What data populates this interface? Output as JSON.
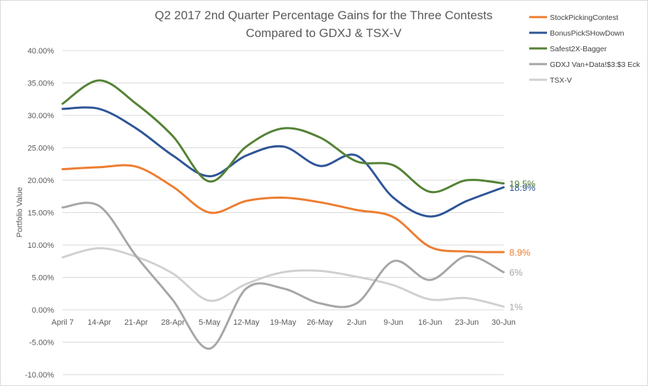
{
  "chart_data": {
    "type": "line",
    "title": "Q2 2017 2nd Quarter Percentage Gains for the Three Contests",
    "subtitle": "Compared to GDXJ & TSX-V",
    "xlabel": "",
    "ylabel": "Portfolio Value",
    "categories": [
      "April 7",
      "14-Apr",
      "21-Apr",
      "28-Apr",
      "5-May",
      "12-May",
      "19-May",
      "26-May",
      "2-Jun",
      "9-Jun",
      "16-Jun",
      "23-Jun",
      "30-Jun"
    ],
    "ylim": [
      -10,
      40
    ],
    "yticks": [
      "-10.00%",
      "-5.00%",
      "0.00%",
      "5.00%",
      "10.00%",
      "15.00%",
      "20.00%",
      "25.00%",
      "30.00%",
      "35.00%",
      "40.00%"
    ],
    "grid": true,
    "legend_position": "right",
    "series": [
      {
        "name": "StockPickingContest",
        "color": "#ED7D31",
        "values": [
          21.7,
          22.0,
          22.1,
          19.0,
          15.0,
          16.8,
          17.3,
          16.6,
          15.4,
          14.3,
          9.7,
          9.0,
          8.9
        ],
        "end_label": "8.9%",
        "label_color": "#ED7D31"
      },
      {
        "name": "BonusPickSHowDown",
        "color": "#2F5597",
        "values": [
          31.0,
          31.0,
          28.0,
          23.8,
          20.6,
          23.8,
          25.2,
          22.2,
          23.8,
          17.3,
          14.4,
          16.8,
          18.9
        ],
        "end_label": "18.9%",
        "label_color": "#2F5597"
      },
      {
        "name": "Safest2X-Bagger",
        "color": "#548235",
        "values": [
          31.8,
          35.4,
          31.8,
          26.8,
          19.8,
          25.2,
          28.0,
          26.6,
          22.9,
          22.3,
          18.2,
          20.0,
          19.5
        ],
        "end_label": "19.5%",
        "label_color": "#548235"
      },
      {
        "name": "GDXJ Van+Data!$3:$3 Eck",
        "color": "#A6A6A6",
        "values": [
          15.8,
          16.0,
          8.3,
          1.5,
          -6.0,
          3.3,
          3.3,
          1.0,
          1.0,
          7.5,
          4.6,
          8.3,
          5.8
        ],
        "end_label": "6%",
        "label_color": "#A6A6A6"
      },
      {
        "name": "TSX-V",
        "color": "#D0D0D0",
        "values": [
          8.1,
          9.5,
          8.2,
          5.6,
          1.4,
          4.0,
          5.8,
          6.0,
          5.1,
          3.8,
          1.6,
          1.8,
          0.5
        ],
        "end_label": "1%",
        "label_color": "#A6A6A6"
      }
    ]
  }
}
